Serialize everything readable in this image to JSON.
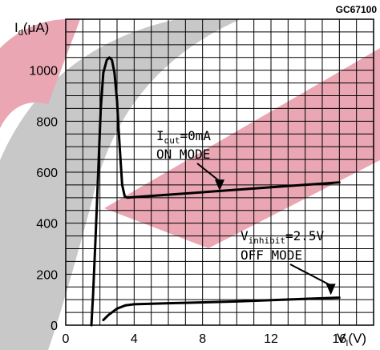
{
  "figure_code": "GC67100",
  "chart_data": {
    "type": "line",
    "y_axis": {
      "symbol": "I",
      "subscript": "d",
      "unit": "(μA)"
    },
    "x_axis": {
      "symbol": "V",
      "subscript": "I",
      "unit": "(V)"
    },
    "xlim": [
      0,
      18
    ],
    "ylim": [
      0,
      1200
    ],
    "x_ticks": [
      0,
      4,
      8,
      12,
      16
    ],
    "y_ticks": [
      0,
      200,
      400,
      600,
      800,
      1000
    ],
    "grid": true,
    "series": [
      {
        "points": [
          [
            1.5,
            0
          ],
          [
            1.6,
            120
          ],
          [
            1.75,
            350
          ],
          [
            1.9,
            600
          ],
          [
            2.05,
            850
          ],
          [
            2.2,
            990
          ],
          [
            2.4,
            1040
          ],
          [
            2.55,
            1050
          ],
          [
            2.7,
            1040
          ],
          [
            2.85,
            990
          ],
          [
            3.0,
            880
          ],
          [
            3.1,
            760
          ],
          [
            3.2,
            650
          ],
          [
            3.3,
            550
          ],
          [
            3.45,
            505
          ],
          [
            3.6,
            500
          ],
          [
            16,
            560
          ]
        ]
      },
      {
        "points": [
          [
            2.2,
            20
          ],
          [
            2.5,
            40
          ],
          [
            3.0,
            65
          ],
          [
            3.5,
            78
          ],
          [
            4.0,
            82
          ],
          [
            6.0,
            86
          ],
          [
            10.0,
            93
          ],
          [
            16.0,
            108
          ]
        ]
      }
    ],
    "annotations": [
      {
        "condition_symbol": "I",
        "condition_sub": "out",
        "condition_value": "=0mA",
        "mode": "ON MODE",
        "arrow_to": [
          9,
          527
        ]
      },
      {
        "condition_symbol": "V",
        "condition_sub": "inhibit",
        "condition_value": "=2.5V",
        "mode": "OFF MODE",
        "arrow_to": [
          15.5,
          118
        ]
      }
    ]
  }
}
